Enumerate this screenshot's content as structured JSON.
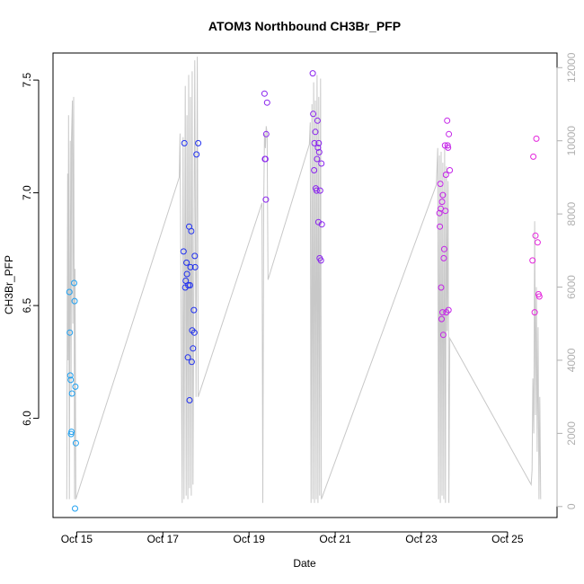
{
  "chart_data": {
    "type": "scatter",
    "title": "ATOM3 Northbound CH3Br_PFP",
    "xlabel": "Date",
    "ylabel": "CH3Br_PFP",
    "xlim": [
      14.45,
      26.15
    ],
    "ylim": [
      5.56,
      7.62
    ],
    "y2lim": [
      -300,
      12400
    ],
    "x_ticks": [
      15,
      17,
      19,
      21,
      23,
      25
    ],
    "x_tick_labels": [
      "Oct 15",
      "Oct 17",
      "Oct 19",
      "Oct 21",
      "Oct 23",
      "Oct 25"
    ],
    "y_ticks": [
      6.0,
      6.5,
      7.0,
      7.5
    ],
    "y_tick_labels": [
      "6.0",
      "6.5",
      "7.0",
      "7.5"
    ],
    "y2_ticks": [
      0,
      2000,
      4000,
      6000,
      8000,
      10000,
      12000
    ],
    "y2_tick_labels": [
      "0",
      "2000",
      "4000",
      "6000",
      "8000",
      "10000",
      "12000"
    ],
    "colors": {
      "series": [
        "#1fa0f0",
        "#2030f0",
        "#8a24ee",
        "#c424e8",
        "#e424dc"
      ],
      "altitude": "#c8c8c8",
      "right_axis": "#b0b0b0"
    },
    "points": [
      [
        14.83,
        6.56
      ],
      [
        14.84,
        6.38
      ],
      [
        14.85,
        6.19
      ],
      [
        14.86,
        6.17
      ],
      [
        14.87,
        5.93
      ],
      [
        14.88,
        5.94
      ],
      [
        14.89,
        6.11
      ],
      [
        14.94,
        6.6
      ],
      [
        14.95,
        6.52
      ],
      [
        14.97,
        6.14
      ],
      [
        14.98,
        5.89
      ],
      [
        14.96,
        5.6
      ],
      [
        17.48,
        6.74
      ],
      [
        17.5,
        7.22
      ],
      [
        17.52,
        6.58
      ],
      [
        17.53,
        6.61
      ],
      [
        17.55,
        6.69
      ],
      [
        17.56,
        6.64
      ],
      [
        17.58,
        6.27
      ],
      [
        17.59,
        6.59
      ],
      [
        17.61,
        6.85
      ],
      [
        17.62,
        6.08
      ],
      [
        17.63,
        6.59
      ],
      [
        17.64,
        6.67
      ],
      [
        17.66,
        6.83
      ],
      [
        17.67,
        6.25
      ],
      [
        17.68,
        6.39
      ],
      [
        17.7,
        6.31
      ],
      [
        17.72,
        6.48
      ],
      [
        17.73,
        6.38
      ],
      [
        17.74,
        6.72
      ],
      [
        17.75,
        6.67
      ],
      [
        17.78,
        7.17
      ],
      [
        17.82,
        7.22
      ],
      [
        19.36,
        7.44
      ],
      [
        19.37,
        7.15
      ],
      [
        19.38,
        7.15
      ],
      [
        19.39,
        6.97
      ],
      [
        19.4,
        7.26
      ],
      [
        19.42,
        7.4
      ],
      [
        20.48,
        7.53
      ],
      [
        20.49,
        7.35
      ],
      [
        20.51,
        7.1
      ],
      [
        20.52,
        7.22
      ],
      [
        20.54,
        7.27
      ],
      [
        20.55,
        7.02
      ],
      [
        20.57,
        7.01
      ],
      [
        20.58,
        7.15
      ],
      [
        20.59,
        7.32
      ],
      [
        20.6,
        7.2
      ],
      [
        20.61,
        6.87
      ],
      [
        20.62,
        7.22
      ],
      [
        20.63,
        7.18
      ],
      [
        20.64,
        6.71
      ],
      [
        20.65,
        7.01
      ],
      [
        20.67,
        6.7
      ],
      [
        20.68,
        7.13
      ],
      [
        20.69,
        6.86
      ],
      [
        23.42,
        6.91
      ],
      [
        23.43,
        6.85
      ],
      [
        23.44,
        7.04
      ],
      [
        23.45,
        6.93
      ],
      [
        23.46,
        6.58
      ],
      [
        23.47,
        6.44
      ],
      [
        23.48,
        6.96
      ],
      [
        23.49,
        6.47
      ],
      [
        23.5,
        6.99
      ],
      [
        23.51,
        6.37
      ],
      [
        23.52,
        6.71
      ],
      [
        23.53,
        6.75
      ],
      [
        23.55,
        7.21
      ],
      [
        23.56,
        6.92
      ],
      [
        23.57,
        7.08
      ],
      [
        23.58,
        6.47
      ],
      [
        23.6,
        7.32
      ],
      [
        23.61,
        7.21
      ],
      [
        23.62,
        7.2
      ],
      [
        23.63,
        6.48
      ],
      [
        23.64,
        7.26
      ],
      [
        23.66,
        7.1
      ],
      [
        25.58,
        6.7
      ],
      [
        25.6,
        7.16
      ],
      [
        25.63,
        6.47
      ],
      [
        25.65,
        6.81
      ],
      [
        25.67,
        7.24
      ],
      [
        25.7,
        6.78
      ],
      [
        25.72,
        6.55
      ],
      [
        25.74,
        6.54
      ]
    ],
    "altitude_series": [
      [
        14.77,
        200
      ],
      [
        14.79,
        9100
      ],
      [
        14.8,
        4000
      ],
      [
        14.81,
        10700
      ],
      [
        14.83,
        200
      ],
      [
        14.85,
        10000
      ],
      [
        14.87,
        3000
      ],
      [
        14.88,
        10100
      ],
      [
        14.9,
        11100
      ],
      [
        14.91,
        5000
      ],
      [
        14.93,
        11200
      ],
      [
        14.95,
        200
      ],
      [
        14.96,
        6500
      ],
      [
        14.98,
        200
      ],
      [
        17.38,
        9000
      ],
      [
        17.4,
        10200
      ],
      [
        17.45,
        100
      ],
      [
        17.47,
        10100
      ],
      [
        17.49,
        200
      ],
      [
        17.52,
        11500
      ],
      [
        17.54,
        300
      ],
      [
        17.56,
        10700
      ],
      [
        17.58,
        200
      ],
      [
        17.6,
        11800
      ],
      [
        17.62,
        500
      ],
      [
        17.64,
        11200
      ],
      [
        17.66,
        300
      ],
      [
        17.68,
        11900
      ],
      [
        17.7,
        600
      ],
      [
        17.74,
        12200
      ],
      [
        17.77,
        3000
      ],
      [
        17.8,
        12300
      ],
      [
        17.82,
        3000
      ],
      [
        19.3,
        8300
      ],
      [
        19.32,
        100
      ],
      [
        19.34,
        8200
      ],
      [
        19.36,
        10200
      ],
      [
        19.38,
        9800
      ],
      [
        19.4,
        10400
      ],
      [
        19.42,
        10200
      ],
      [
        19.44,
        6200
      ],
      [
        20.4,
        9900
      ],
      [
        20.42,
        10500
      ],
      [
        20.44,
        100
      ],
      [
        20.46,
        11000
      ],
      [
        20.48,
        200
      ],
      [
        20.5,
        11600
      ],
      [
        20.52,
        100
      ],
      [
        20.54,
        11100
      ],
      [
        20.56,
        200
      ],
      [
        20.58,
        11800
      ],
      [
        20.6,
        100
      ],
      [
        20.62,
        11200
      ],
      [
        20.64,
        300
      ],
      [
        20.66,
        11700
      ],
      [
        20.68,
        200
      ],
      [
        23.35,
        8800
      ],
      [
        23.38,
        9800
      ],
      [
        23.4,
        200
      ],
      [
        23.42,
        9600
      ],
      [
        23.44,
        100
      ],
      [
        23.46,
        9700
      ],
      [
        23.48,
        300
      ],
      [
        23.5,
        9400
      ],
      [
        23.52,
        200
      ],
      [
        23.54,
        9800
      ],
      [
        23.56,
        100
      ],
      [
        23.58,
        9300
      ],
      [
        23.6,
        4800
      ],
      [
        23.62,
        8900
      ],
      [
        23.64,
        100
      ],
      [
        23.66,
        4600
      ],
      [
        25.55,
        600
      ],
      [
        25.57,
        1000
      ],
      [
        25.59,
        3500
      ],
      [
        25.61,
        2000
      ],
      [
        25.63,
        7800
      ],
      [
        25.65,
        2500
      ],
      [
        25.67,
        6000
      ],
      [
        25.69,
        1500
      ],
      [
        25.71,
        4900
      ],
      [
        25.73,
        200
      ],
      [
        25.75,
        3000
      ],
      [
        25.77,
        200
      ]
    ]
  }
}
